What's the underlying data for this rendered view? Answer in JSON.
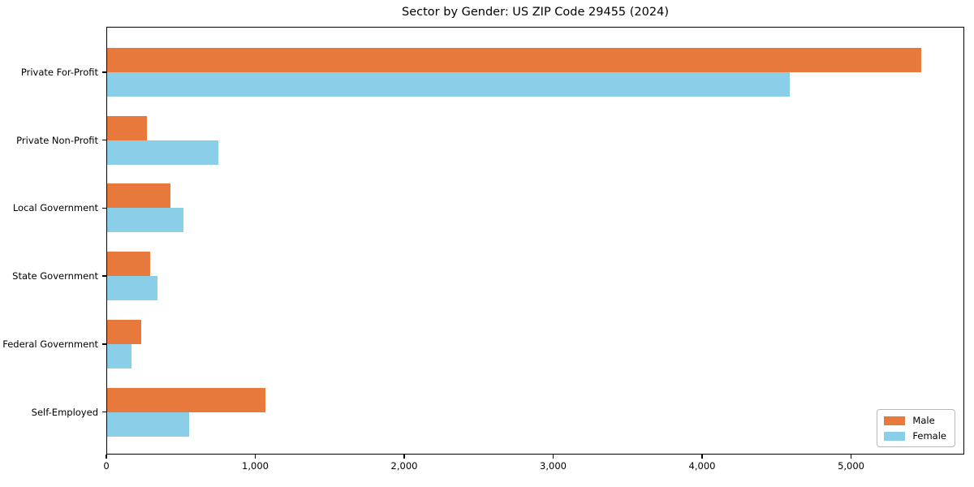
{
  "chart_data": {
    "type": "bar",
    "orientation": "horizontal",
    "title": "Sector by Gender: US ZIP Code 29455 (2024)",
    "categories": [
      "Private For-Profit",
      "Private Non-Profit",
      "Local Government",
      "State Government",
      "Federal Government",
      "Self-Employed"
    ],
    "series": [
      {
        "name": "Male",
        "color": "#E8793D",
        "values": [
          5470,
          270,
          430,
          295,
          235,
          1070
        ]
      },
      {
        "name": "Female",
        "color": "#8BCEE8",
        "values": [
          4590,
          750,
          520,
          345,
          170,
          555
        ]
      }
    ],
    "xlim": [
      0,
      5760
    ],
    "xticks": [
      0,
      1000,
      2000,
      3000,
      4000,
      5000
    ],
    "xtick_labels": [
      "0",
      "1,000",
      "2,000",
      "3,000",
      "4,000",
      "5,000"
    ],
    "xlabel": "",
    "ylabel": "",
    "grid": false,
    "legend": {
      "position": "lower right",
      "entries": [
        "Male",
        "Female"
      ]
    }
  }
}
